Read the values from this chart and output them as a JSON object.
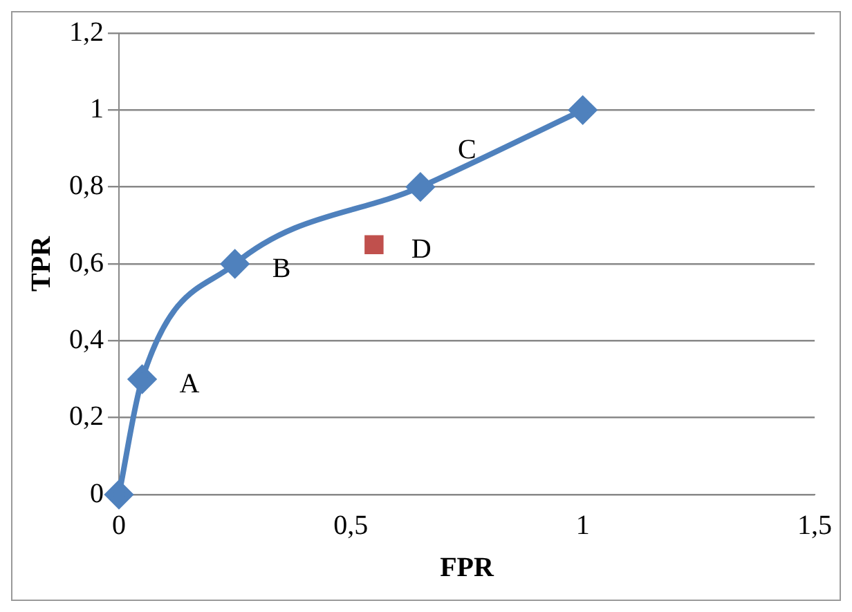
{
  "chart_data": {
    "type": "line",
    "xlabel": "FPR",
    "ylabel": "TPR",
    "xlim": [
      0,
      1.5
    ],
    "xticks": [
      0,
      {
        "value": 0.5,
        "label": "0,5"
      },
      1,
      {
        "value": 1.5,
        "label": "1,5"
      }
    ],
    "ylim": [
      0,
      1.2
    ],
    "yticks": [
      0,
      {
        "value": 0.2,
        "label": "0,2"
      },
      {
        "value": 0.4,
        "label": "0,4"
      },
      {
        "value": 0.6,
        "label": "0,6"
      },
      {
        "value": 0.8,
        "label": "0,8"
      },
      1,
      {
        "value": 1.2,
        "label": "1,2"
      }
    ],
    "grid": "y",
    "series": [
      {
        "color": "#4f81bd",
        "marker": "diamond",
        "x": [
          0,
          0.05,
          0.25,
          0.65,
          1
        ],
        "values": [
          0,
          0.3,
          0.6,
          0.8,
          1
        ]
      },
      {
        "type": "scatter",
        "color": "#c0504d",
        "marker": "square",
        "x": [
          0.55
        ],
        "values": [
          0.65
        ]
      }
    ],
    "annotations": [
      {
        "text": "A",
        "x": 0.05,
        "y": 0.3
      },
      {
        "text": "B",
        "x": 0.25,
        "y": 0.6
      },
      {
        "text": "C",
        "x": 0.65,
        "y": 0.8
      },
      {
        "text": "D",
        "x": 0.55,
        "y": 0.65
      }
    ]
  }
}
